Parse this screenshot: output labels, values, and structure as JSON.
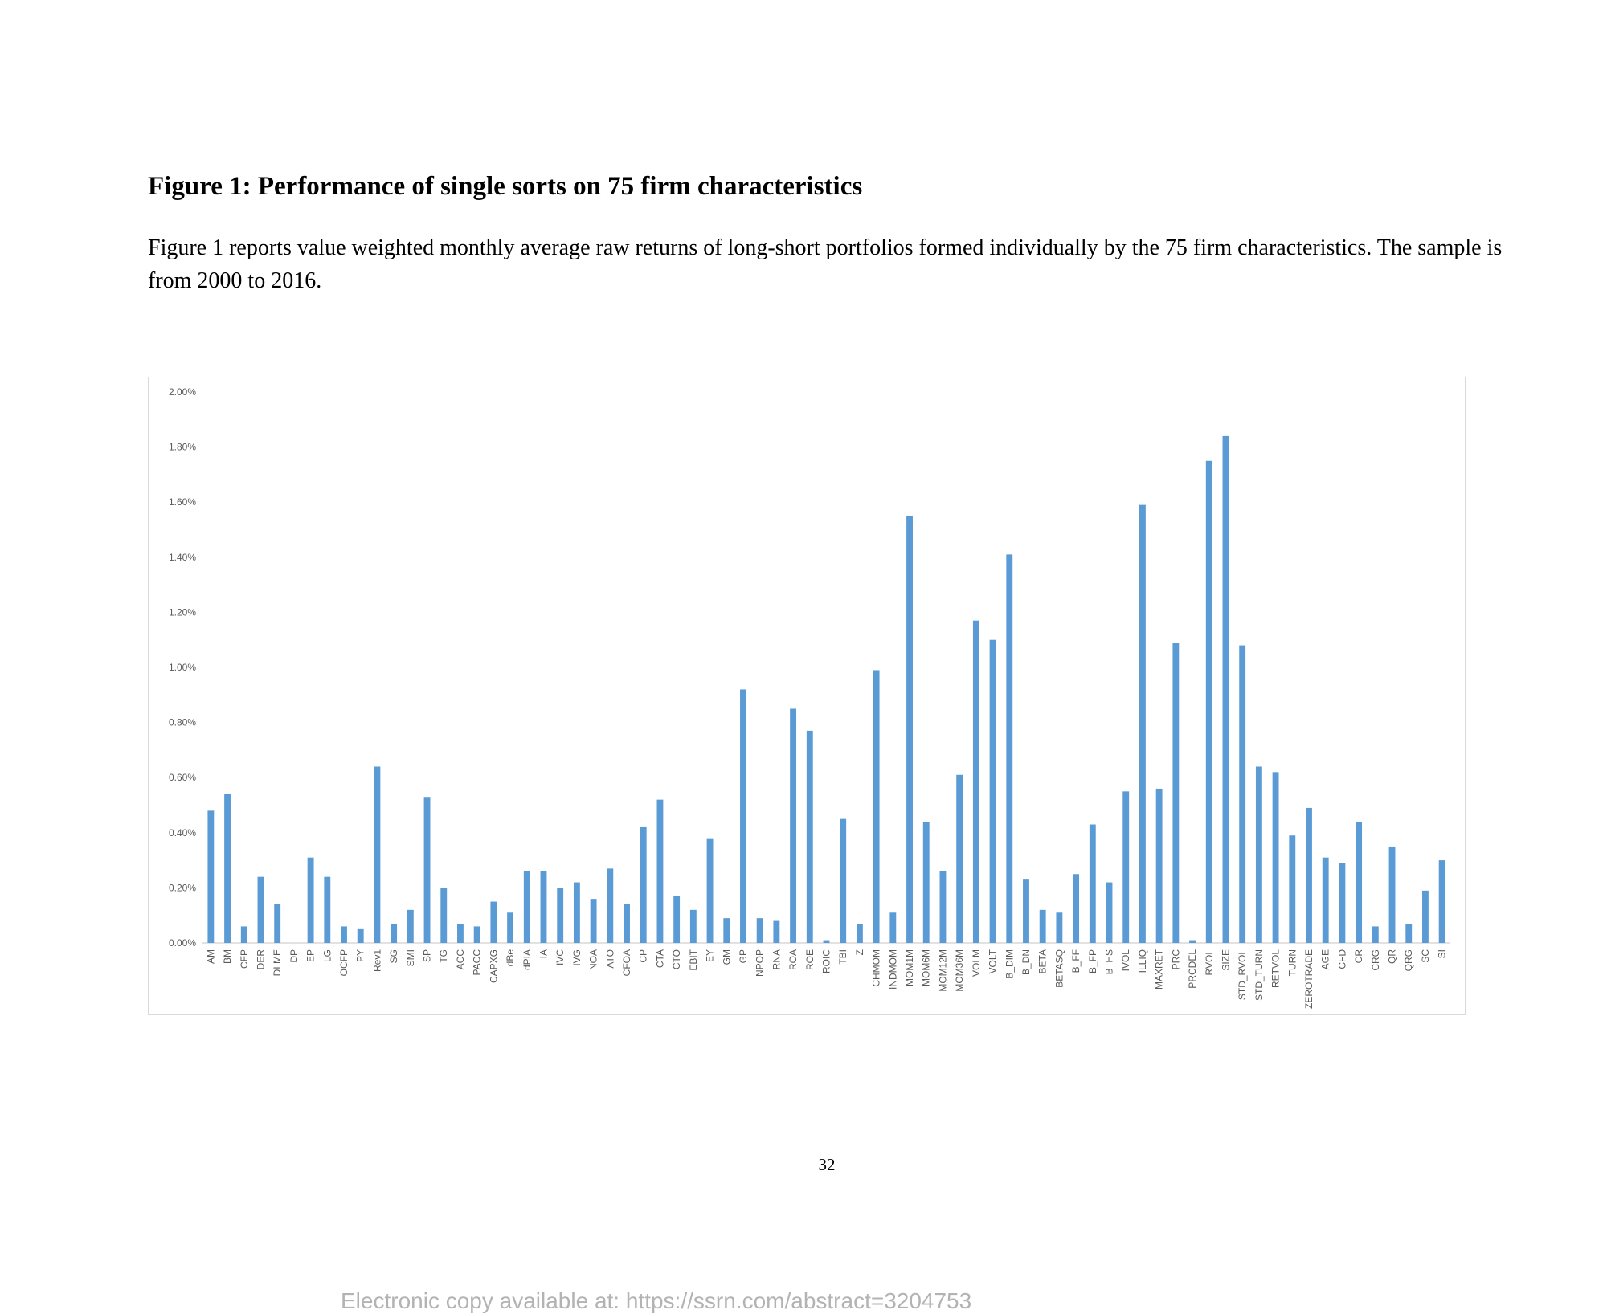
{
  "figure": {
    "title": "Figure 1: Performance of single sorts on 75 firm characteristics",
    "caption": "Figure 1 reports value weighted monthly average raw returns of long-short portfolios formed individually by the 75 firm characteristics. The sample is from 2000 to 2016."
  },
  "page_number": "32",
  "footer": "Electronic copy available at: https://ssrn.com/abstract=3204753",
  "colors": {
    "bar": "#5b9bd5",
    "axis": "#d9d9d9",
    "tick_text": "#595959",
    "footer": "#b3b3b3"
  },
  "chart_data": {
    "type": "bar",
    "title": "",
    "xlabel": "",
    "ylabel": "",
    "ylim": [
      0,
      2.0
    ],
    "yticks": [
      "0.00%",
      "0.20%",
      "0.40%",
      "0.60%",
      "0.80%",
      "1.00%",
      "1.20%",
      "1.40%",
      "1.60%",
      "1.80%",
      "2.00%"
    ],
    "grid": false,
    "legend": "none",
    "categories": [
      "AM",
      "BM",
      "CFP",
      "DER",
      "DLME",
      "DP",
      "EP",
      "LG",
      "OCFP",
      "PY",
      "Rev1",
      "SG",
      "SMI",
      "SP",
      "TG",
      "ACC",
      "PACC",
      "CAPXG",
      "dBe",
      "dPIA",
      "IA",
      "IVC",
      "IVG",
      "NOA",
      "ATO",
      "CFOA",
      "CP",
      "CTA",
      "CTO",
      "EBIT",
      "EY",
      "GM",
      "GP",
      "NPOP",
      "RNA",
      "ROA",
      "ROE",
      "ROIC",
      "TBI",
      "Z",
      "CHMOM",
      "INDMOM",
      "MOM1M",
      "MOM6M",
      "MOM12M",
      "MOM36M",
      "VOLM",
      "VOLT",
      "B_DIM",
      "B_DN",
      "BETA",
      "BETASQ",
      "B_FF",
      "B_FP",
      "B_HS",
      "IVOL",
      "ILLIQ",
      "MAXRET",
      "PRC",
      "PRCDEL",
      "RVOL",
      "SIZE",
      "STD_RVOL",
      "STD_TURN",
      "RETVOL",
      "TURN",
      "ZEROTRADE",
      "AGE",
      "CFD",
      "CR",
      "CRG",
      "QR",
      "QRG",
      "SC",
      "SI"
    ],
    "values": [
      0.48,
      0.54,
      0.06,
      0.24,
      0.14,
      0.0,
      0.31,
      0.24,
      0.06,
      0.05,
      0.64,
      0.07,
      0.12,
      0.53,
      0.2,
      0.07,
      0.06,
      0.15,
      0.11,
      0.26,
      0.26,
      0.2,
      0.22,
      0.16,
      0.27,
      0.14,
      0.42,
      0.52,
      0.17,
      0.12,
      0.38,
      0.09,
      0.92,
      0.09,
      0.08,
      0.85,
      0.77,
      0.01,
      0.45,
      0.07,
      0.99,
      0.11,
      1.55,
      0.44,
      0.26,
      0.61,
      1.17,
      1.1,
      1.41,
      0.23,
      0.12,
      0.11,
      0.25,
      0.43,
      0.22,
      0.55,
      1.59,
      0.56,
      1.09,
      0.01,
      1.75,
      1.84,
      1.08,
      0.64,
      0.62,
      0.39,
      0.49,
      0.31,
      0.29,
      0.44,
      0.06,
      0.35,
      0.07,
      0.19,
      0.3
    ]
  }
}
